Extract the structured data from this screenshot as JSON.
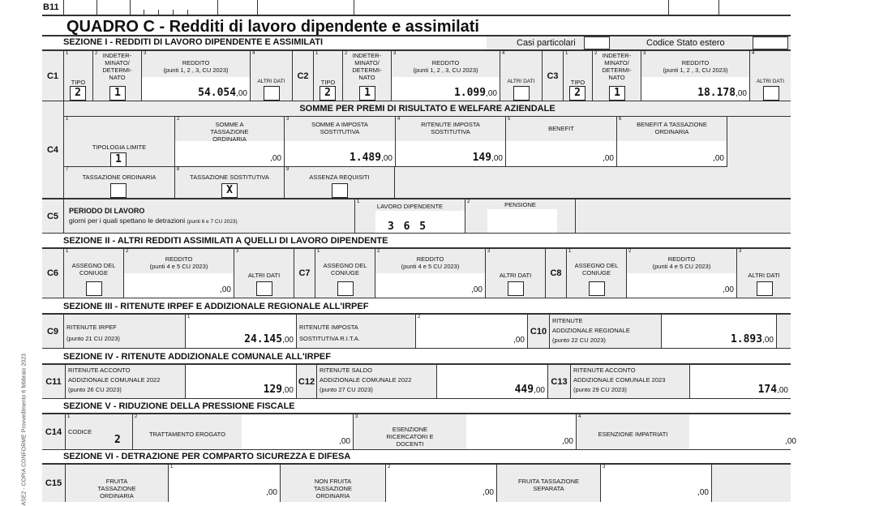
{
  "prev_row": {
    "code": "B11"
  },
  "side_text": "ASE2 - COPIA CONFORME Provvedimento 6 febbraio 2023",
  "title": "QUADRO C - Redditi di lavoro dipendente e assimilati",
  "sez1": {
    "title": "SEZIONE I - REDDITI DI LAVORO DIPENDENTE E ASSIMILATI",
    "casi": "Casi particolari",
    "casi_value": "",
    "stato": "Codice Stato estero",
    "stato_value": ""
  },
  "c_rows": [
    {
      "code": "C1",
      "tipo_label": "TIPO",
      "tipo": "2",
      "indet_label": "INDETER-MINATO/ DETERMI-NATO",
      "indet": "1",
      "reddito_label": "REDDITO",
      "reddito_sub": "(punti 1, 2 , 3, CU 2023)",
      "reddito": "54.054",
      "cents": ",00",
      "altri": "ALTRI DATI"
    },
    {
      "code": "C2",
      "tipo_label": "TIPO",
      "tipo": "2",
      "indet_label": "INDETER-MINATO/ DETERMI-NATO",
      "indet": "1",
      "reddito_label": "REDDITO",
      "reddito_sub": "(punti 1, 2 , 3, CU 2023)",
      "reddito": "1.099",
      "cents": ",00",
      "altri": "ALTRI DATI"
    },
    {
      "code": "C3",
      "tipo_label": "TIPO",
      "tipo": "2",
      "indet_label": "INDETER-MINATO/ DETERMI-NATO",
      "indet": "1",
      "reddito_label": "REDDITO",
      "reddito_sub": "(punti 1, 2 , 3, CU 2023)",
      "reddito": "18.178",
      "cents": ",00",
      "altri": "ALTRI DATI"
    }
  ],
  "c4": {
    "code": "C4",
    "header": "SOMME PER PREMI DI RISULTATO E WELFARE AZIENDALE",
    "tipologia": "TIPOLOGIA LIMITE",
    "tipologia_value": "1",
    "fields": [
      {
        "label": "SOMME A TASSAZIONE ORDINARIA",
        "value": "",
        "cents": ",00"
      },
      {
        "label": "SOMME A IMPOSTA SOSTITUTIVA",
        "value": "1.489",
        "cents": ",00"
      },
      {
        "label": "RITENUTE IMPOSTA SOSTITUTIVA",
        "value": "149",
        "cents": ",00"
      },
      {
        "label": "BENEFIT",
        "value": "",
        "cents": ",00"
      },
      {
        "label": "BENEFIT A TASSAZIONE ORDINARIA",
        "value": "",
        "cents": ",00"
      }
    ],
    "checks": [
      {
        "label": "TASSAZIONE ORDINARIA",
        "value": ""
      },
      {
        "label": "TASSAZIONE SOSTITUTIVA",
        "value": "X"
      },
      {
        "label": "ASSENZA REQUISITI",
        "value": ""
      }
    ]
  },
  "c5": {
    "code": "C5",
    "title": "PERIODO DI LAVORO",
    "desc": "giorni per i quali spettano le detrazioni",
    "desc_sub": "(punti 6 e 7 CU 2023)",
    "lavoro_label": "LAVORO DIPENDENTE",
    "lavoro_value": "3 6 5",
    "pensione_label": "PENSIONE",
    "pensione_value": ""
  },
  "sez2": {
    "title": "SEZIONE II - ALTRI REDDITI ASSIMILATI A QUELLI DI LAVORO DIPENDENTE"
  },
  "c_rows2": [
    {
      "code": "C6",
      "assegno": "ASSEGNO DEL CONIUGE",
      "reddito_label": "REDDITO",
      "reddito_sub": "(punti 4 e 5 CU 2023)",
      "cents": ",00",
      "altri": "ALTRI DATI"
    },
    {
      "code": "C7",
      "assegno": "ASSEGNO DEL CONIUGE",
      "reddito_label": "REDDITO",
      "reddito_sub": "(punti 4 e 5 CU 2023)",
      "cents": ",00",
      "altri": "ALTRI DATI"
    },
    {
      "code": "C8",
      "assegno": "ASSEGNO DEL CONIUGE",
      "reddito_label": "REDDITO",
      "reddito_sub": "(punti 4 e 5 CU 2023)",
      "cents": ",00",
      "altri": "ALTRI DATI"
    }
  ],
  "sez3": {
    "title": "SEZIONE III - RITENUTE IRPEF E ADDIZIONALE REGIONALE ALL'IRPEF",
    "c9": {
      "code": "C9",
      "l1": "RITENUTE IRPEF",
      "l2": "(punto 21 CU 2023)",
      "value": "24.145",
      "cents": ",00",
      "rita1": "RITENUTE IMPOSTA",
      "rita2": "SOSTITUTIVA R.I.T.A.",
      "rita_cents": ",00"
    },
    "c10": {
      "code": "C10",
      "l1": "RITENUTE",
      "l2": "ADDIZIONALE REGIONALE",
      "l3": "(punto 22 CU 2023)",
      "value": "1.893",
      "cents": ",00"
    }
  },
  "sez4": {
    "title": "SEZIONE IV - RITENUTE ADDIZIONALE COMUNALE ALL'IRPEF",
    "items": [
      {
        "code": "C11",
        "l1": "RITENUTE ACCONTO",
        "l2": "ADDIZIONALE COMUNALE 2022",
        "l3": "(punto 26 CU 2023)",
        "value": "129",
        "cents": ",00"
      },
      {
        "code": "C12",
        "l1": "RITENUTE SALDO",
        "l2": "ADDIZIONALE COMUNALE 2022",
        "l3": "(punto 27 CU 2023)",
        "value": "449",
        "cents": ",00"
      },
      {
        "code": "C13",
        "l1": "RITENUTE ACCONTO",
        "l2": "ADDIZIONALE COMUNALE 2023",
        "l3": "(punto 29 CU 2023)",
        "value": "174",
        "cents": ",00"
      }
    ]
  },
  "sez5": {
    "title": "SEZIONE V - RIDUZIONE DELLA PRESSIONE FISCALE",
    "code": "C14",
    "codice": "CODICE",
    "codice_value": "2",
    "trattamento": "TRATTAMENTO EROGATO",
    "ricercatori": "ESENZIONE RICERCATORI E DOCENTI",
    "impatriati": "ESENZIONE IMPATRIATI",
    "cents": ",00"
  },
  "sez6": {
    "title": "SEZIONE VI - DETRAZIONE PER COMPARTO SICUREZZA E DIFESA",
    "code": "C15",
    "f1": "FRUITA TASSAZIONE ORDINARIA",
    "f2": "NON FRUITA TASSAZIONE ORDINARIA",
    "f3": "FRUITA TASSAZIONE SEPARATA",
    "cents": ",00"
  }
}
